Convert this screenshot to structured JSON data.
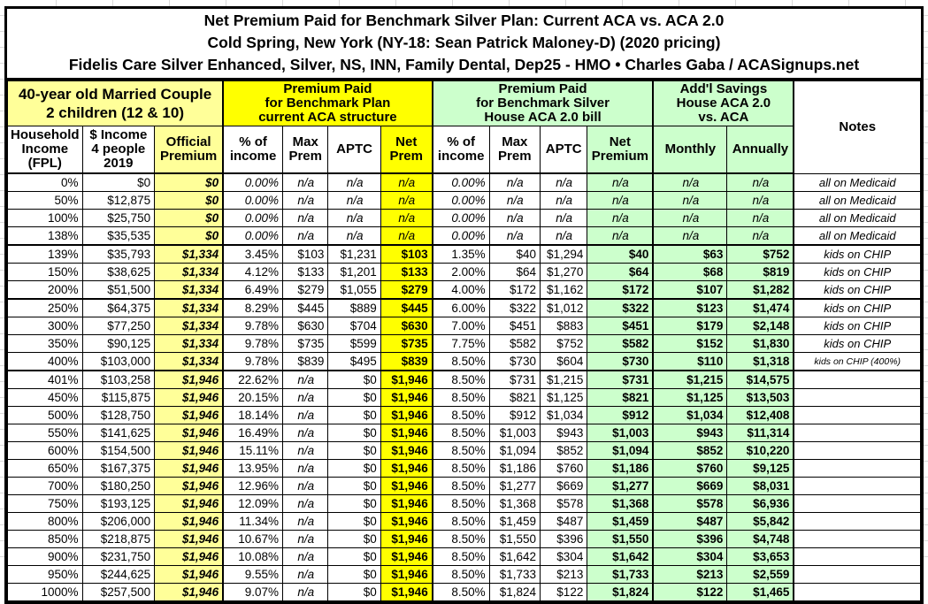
{
  "title": {
    "line1": "Net Premium Paid for Benchmark Silver Plan: Current ACA vs. ACA 2.0",
    "line2": "Cold Spring, New York (NY-18: Sean Patrick Maloney-D) (2020 pricing)",
    "line3": "Fidelis Care Silver Enhanced, Silver, NS, INN, Family Dental, Dep25 - HMO • Charles Gaba / ACASignups.net"
  },
  "column_groups": {
    "household": {
      "label": "40-year old Married Couple\n2 children (12 & 10)"
    },
    "current_aca": {
      "label": "Premium Paid\nfor Benchmark Plan\ncurrent ACA structure"
    },
    "aca_2_0": {
      "label": "Premium Paid\nfor Benchmark Silver\nHouse ACA 2.0 bill"
    },
    "savings": {
      "label": "Add'l Savings\nHouse ACA 2.0\nvs. ACA"
    },
    "notes": {
      "label": "Notes"
    }
  },
  "column_headers": [
    "Household\nIncome\n(FPL)",
    "$ Income\n4 people\n2019",
    "Official\nPremium",
    "% of\nincome",
    "Max\nPrem",
    "APTC",
    "Net\nPrem",
    "% of\nincome",
    "Max\nPrem",
    "APTC",
    "Net\nPremium",
    "Monthly",
    "Annually"
  ],
  "rows": [
    [
      "0%",
      "$0",
      "$0",
      "0.00%",
      "n/a",
      "n/a",
      "n/a",
      "0.00%",
      "n/a",
      "n/a",
      "n/a",
      "n/a",
      "n/a",
      "all on Medicaid"
    ],
    [
      "50%",
      "$12,875",
      "$0",
      "0.00%",
      "n/a",
      "n/a",
      "n/a",
      "0.00%",
      "n/a",
      "n/a",
      "n/a",
      "n/a",
      "n/a",
      "all on Medicaid"
    ],
    [
      "100%",
      "$25,750",
      "$0",
      "0.00%",
      "n/a",
      "n/a",
      "n/a",
      "0.00%",
      "n/a",
      "n/a",
      "n/a",
      "n/a",
      "n/a",
      "all on Medicaid"
    ],
    [
      "138%",
      "$35,535",
      "$0",
      "0.00%",
      "n/a",
      "n/a",
      "n/a",
      "0.00%",
      "n/a",
      "n/a",
      "n/a",
      "n/a",
      "n/a",
      "all on Medicaid"
    ],
    [
      "139%",
      "$35,793",
      "$1,334",
      "3.45%",
      "$103",
      "$1,231",
      "$103",
      "1.35%",
      "$40",
      "$1,294",
      "$40",
      "$63",
      "$752",
      "kids on CHIP"
    ],
    [
      "150%",
      "$38,625",
      "$1,334",
      "4.12%",
      "$133",
      "$1,201",
      "$133",
      "2.00%",
      "$64",
      "$1,270",
      "$64",
      "$68",
      "$819",
      "kids on CHIP"
    ],
    [
      "200%",
      "$51,500",
      "$1,334",
      "6.49%",
      "$279",
      "$1,055",
      "$279",
      "4.00%",
      "$172",
      "$1,162",
      "$172",
      "$107",
      "$1,282",
      "kids on CHIP"
    ],
    [
      "250%",
      "$64,375",
      "$1,334",
      "8.29%",
      "$445",
      "$889",
      "$445",
      "6.00%",
      "$322",
      "$1,012",
      "$322",
      "$123",
      "$1,474",
      "kids on CHIP"
    ],
    [
      "300%",
      "$77,250",
      "$1,334",
      "9.78%",
      "$630",
      "$704",
      "$630",
      "7.00%",
      "$451",
      "$883",
      "$451",
      "$179",
      "$2,148",
      "kids on CHIP"
    ],
    [
      "350%",
      "$90,125",
      "$1,334",
      "9.78%",
      "$735",
      "$599",
      "$735",
      "7.75%",
      "$582",
      "$752",
      "$582",
      "$152",
      "$1,830",
      "kids on CHIP"
    ],
    [
      "400%",
      "$103,000",
      "$1,334",
      "9.78%",
      "$839",
      "$495",
      "$839",
      "8.50%",
      "$730",
      "$604",
      "$730",
      "$110",
      "$1,318",
      "kids on CHIP (400%)"
    ],
    [
      "401%",
      "$103,258",
      "$1,946",
      "22.62%",
      "n/a",
      "$0",
      "$1,946",
      "8.50%",
      "$731",
      "$1,215",
      "$731",
      "$1,215",
      "$14,575",
      ""
    ],
    [
      "450%",
      "$115,875",
      "$1,946",
      "20.15%",
      "n/a",
      "$0",
      "$1,946",
      "8.50%",
      "$821",
      "$1,125",
      "$821",
      "$1,125",
      "$13,503",
      ""
    ],
    [
      "500%",
      "$128,750",
      "$1,946",
      "18.14%",
      "n/a",
      "$0",
      "$1,946",
      "8.50%",
      "$912",
      "$1,034",
      "$912",
      "$1,034",
      "$12,408",
      ""
    ],
    [
      "550%",
      "$141,625",
      "$1,946",
      "16.49%",
      "n/a",
      "$0",
      "$1,946",
      "8.50%",
      "$1,003",
      "$943",
      "$1,003",
      "$943",
      "$11,314",
      ""
    ],
    [
      "600%",
      "$154,500",
      "$1,946",
      "15.11%",
      "n/a",
      "$0",
      "$1,946",
      "8.50%",
      "$1,094",
      "$852",
      "$1,094",
      "$852",
      "$10,220",
      ""
    ],
    [
      "650%",
      "$167,375",
      "$1,946",
      "13.95%",
      "n/a",
      "$0",
      "$1,946",
      "8.50%",
      "$1,186",
      "$760",
      "$1,186",
      "$760",
      "$9,125",
      ""
    ],
    [
      "700%",
      "$180,250",
      "$1,946",
      "12.96%",
      "n/a",
      "$0",
      "$1,946",
      "8.50%",
      "$1,277",
      "$669",
      "$1,277",
      "$669",
      "$8,031",
      ""
    ],
    [
      "750%",
      "$193,125",
      "$1,946",
      "12.09%",
      "n/a",
      "$0",
      "$1,946",
      "8.50%",
      "$1,368",
      "$578",
      "$1,368",
      "$578",
      "$6,936",
      ""
    ],
    [
      "800%",
      "$206,000",
      "$1,946",
      "11.34%",
      "n/a",
      "$0",
      "$1,946",
      "8.50%",
      "$1,459",
      "$487",
      "$1,459",
      "$487",
      "$5,842",
      ""
    ],
    [
      "850%",
      "$218,875",
      "$1,946",
      "10.67%",
      "n/a",
      "$0",
      "$1,946",
      "8.50%",
      "$1,550",
      "$396",
      "$1,550",
      "$396",
      "$4,748",
      ""
    ],
    [
      "900%",
      "$231,750",
      "$1,946",
      "10.08%",
      "n/a",
      "$0",
      "$1,946",
      "8.50%",
      "$1,642",
      "$304",
      "$1,642",
      "$304",
      "$3,653",
      ""
    ],
    [
      "950%",
      "$244,625",
      "$1,946",
      "9.55%",
      "n/a",
      "$0",
      "$1,946",
      "8.50%",
      "$1,733",
      "$213",
      "$1,733",
      "$213",
      "$2,559",
      ""
    ],
    [
      "1000%",
      "$257,500",
      "$1,946",
      "9.07%",
      "n/a",
      "$0",
      "$1,946",
      "8.50%",
      "$1,824",
      "$122",
      "$1,824",
      "$122",
      "$1,465",
      ""
    ]
  ],
  "colors": {
    "light_yellow": "#FFFF99",
    "bright_yellow": "#FFFF00",
    "light_green": "#CCFFCC",
    "border": "#000000"
  }
}
